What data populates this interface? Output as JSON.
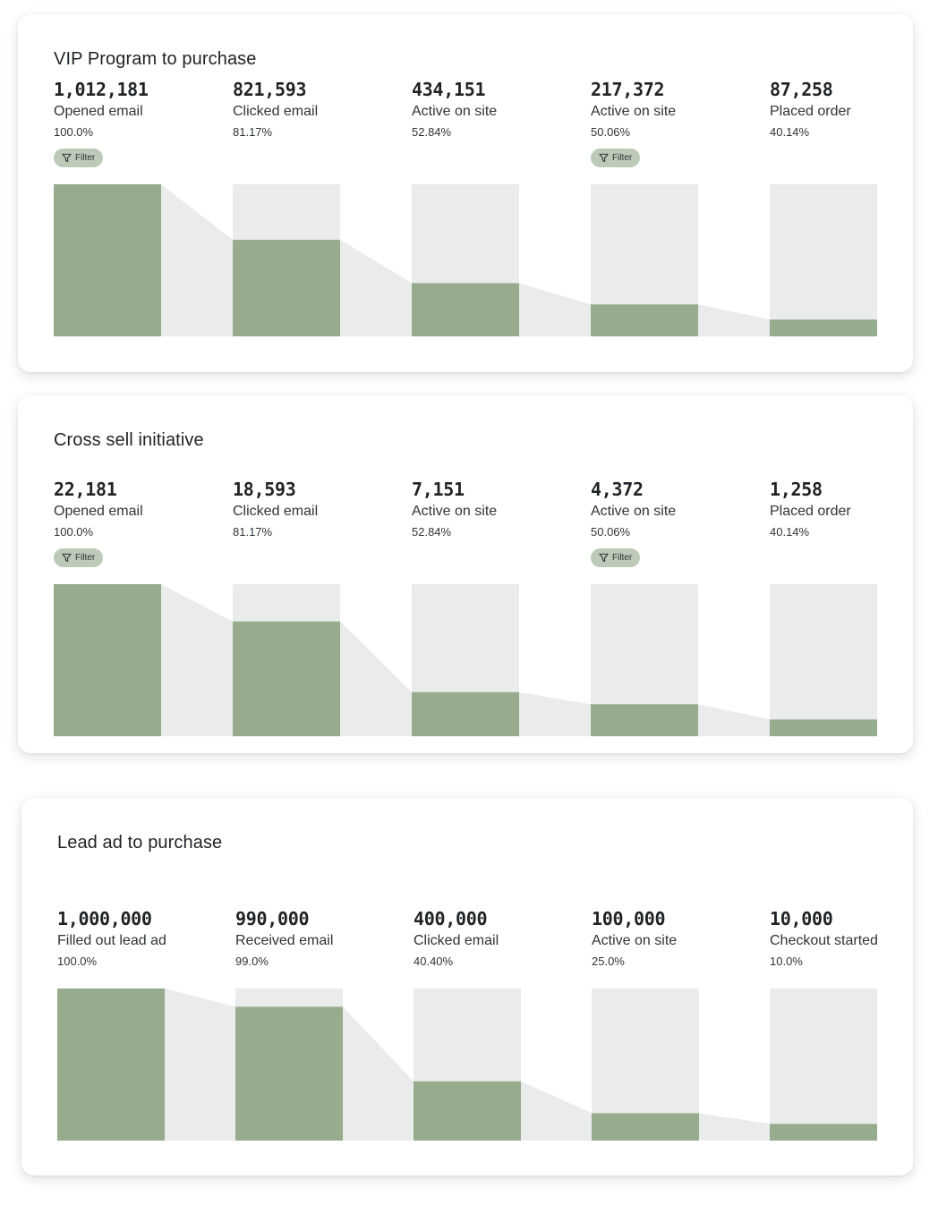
{
  "colors": {
    "bar": "#97ab8e",
    "track": "#e9eceb",
    "chip": "#bccab7"
  },
  "funnels": [
    {
      "title": "VIP Program to purchase",
      "steps": [
        {
          "count": "1,012,181",
          "label": "Opened email",
          "pct": "100.0%",
          "filter": true
        },
        {
          "count": "821,593",
          "label": "Clicked email",
          "pct": "81.17%",
          "filter": false
        },
        {
          "count": "434,151",
          "label": "Active on site",
          "pct": "52.84%",
          "filter": false
        },
        {
          "count": "217,372",
          "label": "Active on site",
          "pct": "50.06%",
          "filter": true
        },
        {
          "count": "87,258",
          "label": "Placed order",
          "pct": "40.14%",
          "filter": false
        }
      ]
    },
    {
      "title": "Cross sell initiative",
      "steps": [
        {
          "count": "22,181",
          "label": "Opened email",
          "pct": "100.0%",
          "filter": true
        },
        {
          "count": "18,593",
          "label": "Clicked email",
          "pct": "81.17%",
          "filter": false
        },
        {
          "count": "7,151",
          "label": "Active on site",
          "pct": "52.84%",
          "filter": false
        },
        {
          "count": "4,372",
          "label": "Active on site",
          "pct": "50.06%",
          "filter": true
        },
        {
          "count": "1,258",
          "label": "Placed order",
          "pct": "40.14%",
          "filter": false
        }
      ]
    },
    {
      "title": "Lead ad to purchase",
      "steps": [
        {
          "count": "1,000,000",
          "label": "Filled out lead ad",
          "pct": "100.0%",
          "filter": false
        },
        {
          "count": "990,000",
          "label": "Received email",
          "pct": "99.0%",
          "filter": false
        },
        {
          "count": "400,000",
          "label": "Clicked email",
          "pct": "40.40%",
          "filter": false
        },
        {
          "count": "100,000",
          "label": "Active on site",
          "pct": "25.0%",
          "filter": false
        },
        {
          "count": "10,000",
          "label": "Checkout started",
          "pct": "10.0%",
          "filter": false
        }
      ]
    }
  ],
  "filter_label": "Filter",
  "filter_icon": "filter-funnel-icon",
  "chart_data": [
    {
      "type": "bar",
      "title": "VIP Program to purchase",
      "categories": [
        "Opened email",
        "Clicked email",
        "Active on site",
        "Active on site",
        "Placed order"
      ],
      "values": [
        1012181,
        821593,
        434151,
        217372,
        87258
      ],
      "percent": [
        100.0,
        81.17,
        52.84,
        50.06,
        40.14
      ],
      "bar_fill_fraction": [
        1.0,
        0.635,
        0.35,
        0.21,
        0.11
      ]
    },
    {
      "type": "bar",
      "title": "Cross sell initiative",
      "categories": [
        "Opened email",
        "Clicked email",
        "Active on site",
        "Active on site",
        "Placed order"
      ],
      "values": [
        22181,
        18593,
        7151,
        4372,
        1258
      ],
      "percent": [
        100.0,
        81.17,
        52.84,
        50.06,
        40.14
      ],
      "bar_fill_fraction": [
        1.0,
        0.755,
        0.29,
        0.21,
        0.11
      ]
    },
    {
      "type": "bar",
      "title": "Lead ad to purchase",
      "categories": [
        "Filled out lead ad",
        "Received email",
        "Clicked email",
        "Active on site",
        "Checkout started"
      ],
      "values": [
        1000000,
        990000,
        400000,
        100000,
        10000
      ],
      "percent": [
        100.0,
        99.0,
        40.4,
        25.0,
        10.0
      ],
      "bar_fill_fraction": [
        1.0,
        0.88,
        0.39,
        0.18,
        0.11
      ]
    }
  ]
}
